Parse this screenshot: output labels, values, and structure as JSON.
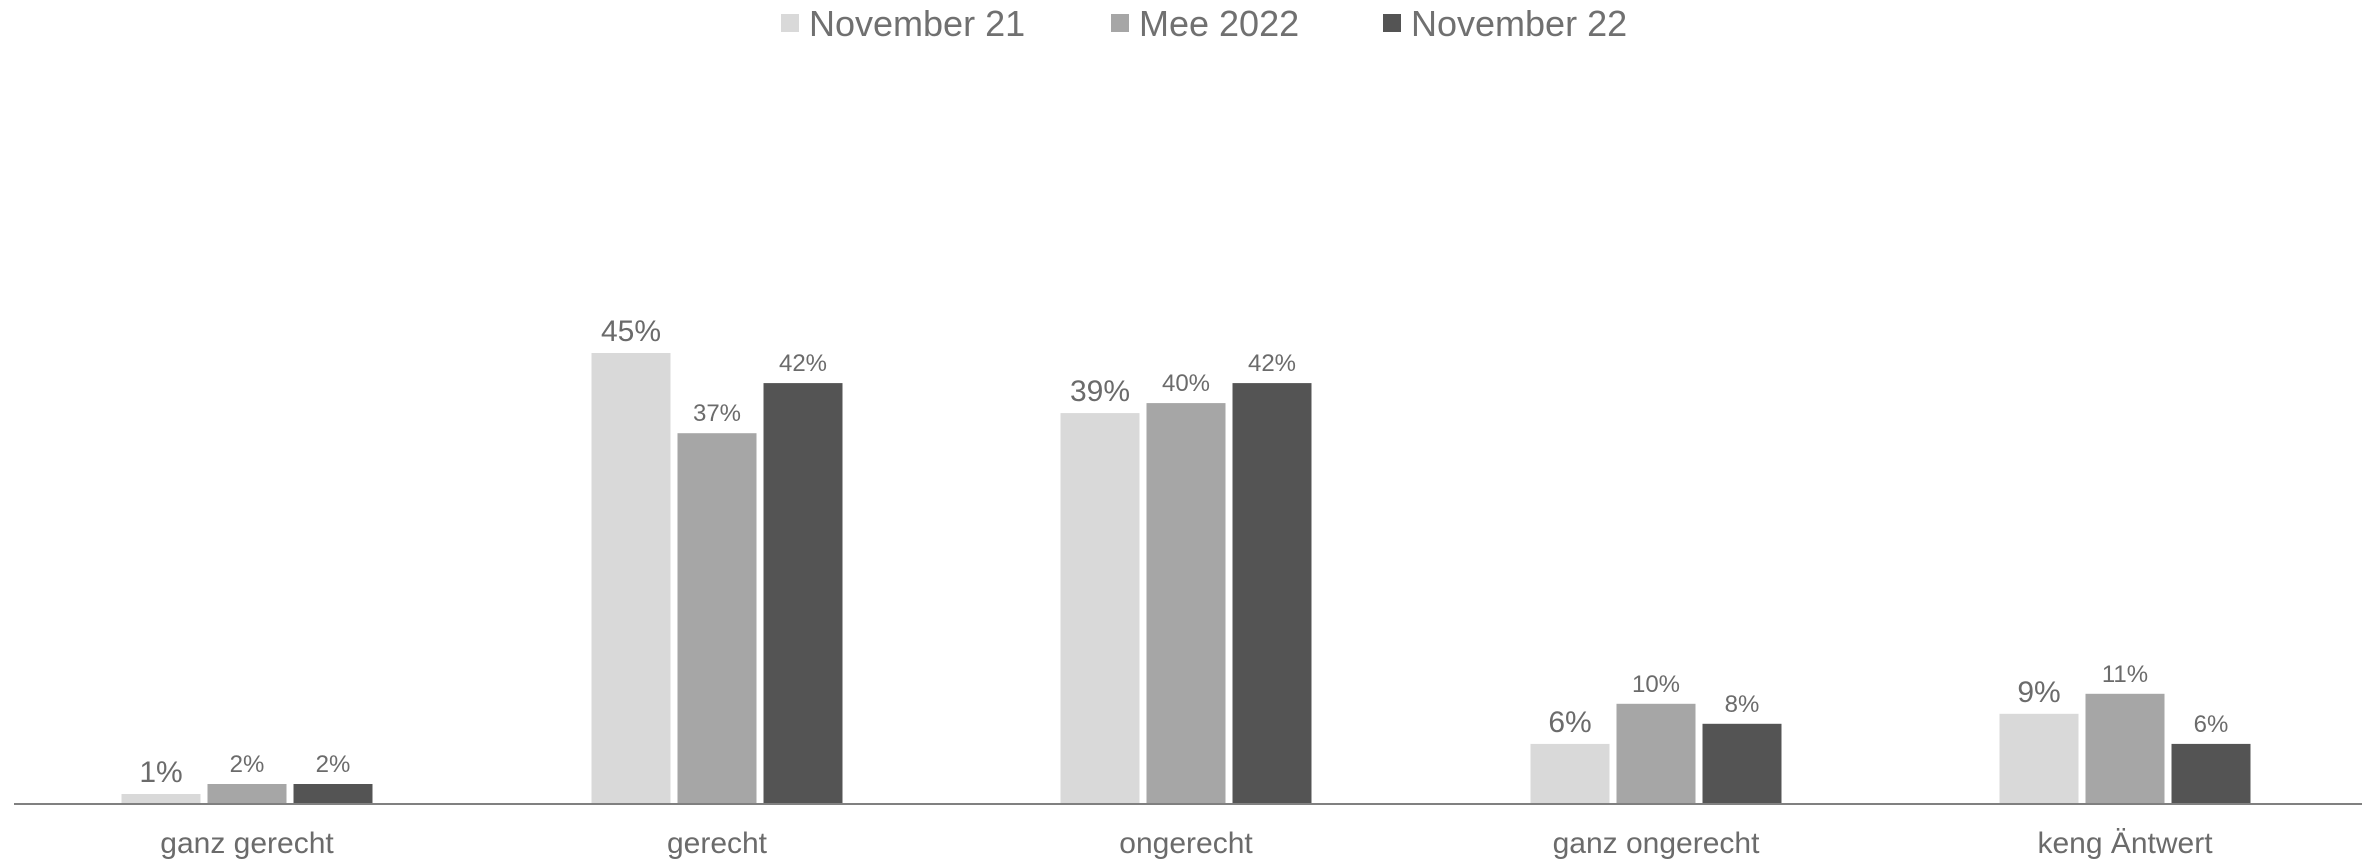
{
  "chart_data": {
    "type": "bar",
    "title": "",
    "xlabel": "",
    "ylabel": "",
    "categories": [
      "ganz gerecht",
      "gerecht",
      "ongerecht",
      "ganz ongerecht",
      "keng Äntwert"
    ],
    "series": [
      {
        "name": "November 21",
        "color": "#d9d9d9",
        "values": [
          1,
          45,
          39,
          6,
          9
        ],
        "labels": [
          "1%",
          "45%",
          "39%",
          "6%",
          "9%"
        ]
      },
      {
        "name": "Mee 2022",
        "color": "#a6a6a6",
        "values": [
          2,
          37,
          40,
          10,
          11
        ],
        "labels": [
          "2%",
          "37%",
          "40%",
          "10%",
          "11%"
        ]
      },
      {
        "name": "November 22",
        "color": "#545454",
        "values": [
          2,
          42,
          42,
          8,
          6
        ],
        "labels": [
          "2%",
          "42%",
          "42%",
          "8%",
          "6%"
        ]
      }
    ],
    "ylim": [
      0,
      70
    ],
    "grid": false,
    "legend_position": "top-center",
    "axis_color": "#808080"
  }
}
